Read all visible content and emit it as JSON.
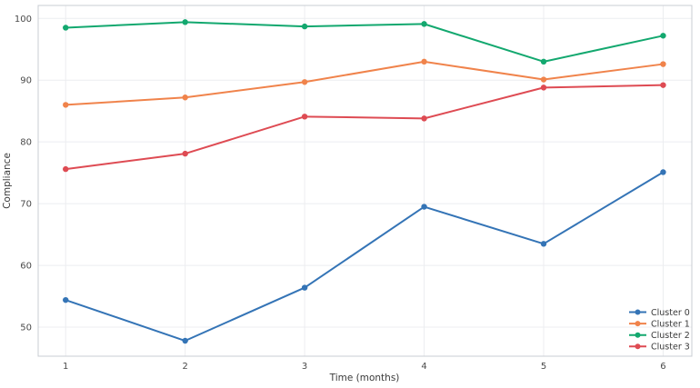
{
  "figure": {
    "background": "#ffffff",
    "plot_background": "#ffffff",
    "grid_color": "#ECEDF0",
    "spine_color": "#C9CDD3",
    "tick_label_color": "#4A4A4A",
    "axis_label_color": "#3A3A3A",
    "legend_text_color": "#3A3A3A"
  },
  "chart_data": {
    "type": "line",
    "title": "",
    "xlabel": "Time (months)",
    "ylabel": "Compliance",
    "x": [
      1,
      2,
      3,
      4,
      5,
      6
    ],
    "xticks": [
      1,
      2,
      3,
      4,
      5,
      6
    ],
    "yticks": [
      50,
      60,
      70,
      80,
      90,
      100
    ],
    "xlim": [
      0.77,
      6.24
    ],
    "ylim": [
      45.3,
      102.1
    ],
    "grid": true,
    "legend_position": "lower right",
    "marker": "circle",
    "series": [
      {
        "name": "Cluster 0",
        "color": "#3474B6",
        "values": [
          54.4,
          47.8,
          56.4,
          69.5,
          63.5,
          75.1
        ]
      },
      {
        "name": "Cluster 1",
        "color": "#F0834B",
        "values": [
          86.0,
          87.2,
          89.7,
          93.0,
          90.1,
          92.6
        ]
      },
      {
        "name": "Cluster 2",
        "color": "#13A86F",
        "values": [
          98.5,
          99.4,
          98.7,
          99.1,
          93.0,
          97.2
        ]
      },
      {
        "name": "Cluster 3",
        "color": "#DE4B53",
        "values": [
          75.6,
          78.1,
          84.1,
          83.8,
          88.8,
          89.2
        ]
      }
    ]
  }
}
